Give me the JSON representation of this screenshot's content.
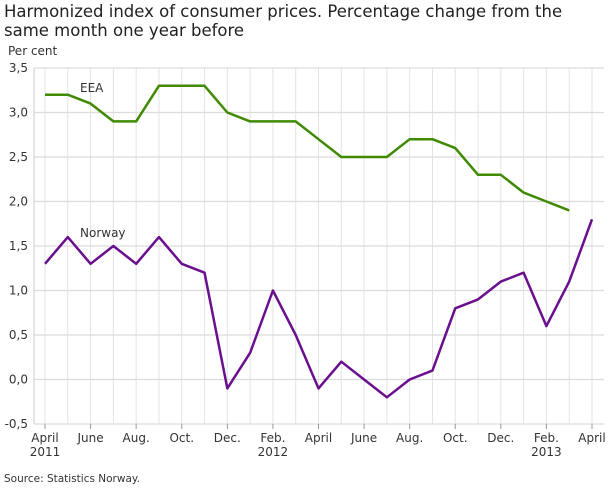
{
  "title": "Harmonized index of consumer prices. Percentage change from the same month one year before",
  "source": "Source: Statistics Norway.",
  "chart_data": {
    "type": "line",
    "title": "Harmonized index of consumer prices. Percentage change from the same month one year before",
    "ylabel": "Per cent",
    "xlabel": "",
    "ylim": [
      -0.5,
      3.5
    ],
    "yticks": [
      "-0,5",
      "0,0",
      "0,5",
      "1,0",
      "1,5",
      "2,0",
      "2,5",
      "3,0",
      "3,5"
    ],
    "x": [
      "2011-04",
      "2011-05",
      "2011-06",
      "2011-07",
      "2011-08",
      "2011-09",
      "2011-10",
      "2011-11",
      "2011-12",
      "2012-01",
      "2012-02",
      "2012-03",
      "2012-04",
      "2012-05",
      "2012-06",
      "2012-07",
      "2012-08",
      "2012-09",
      "2012-10",
      "2012-11",
      "2012-12",
      "2013-01",
      "2013-02",
      "2013-03",
      "2013-04"
    ],
    "xticks": [
      {
        "month": 0,
        "label": "April",
        "year": "2011"
      },
      {
        "month": 2,
        "label": "June",
        "year": ""
      },
      {
        "month": 4,
        "label": "Aug.",
        "year": ""
      },
      {
        "month": 6,
        "label": "Oct.",
        "year": ""
      },
      {
        "month": 8,
        "label": "Dec.",
        "year": ""
      },
      {
        "month": 10,
        "label": "Feb.",
        "year": "2012"
      },
      {
        "month": 12,
        "label": "April",
        "year": ""
      },
      {
        "month": 14,
        "label": "June",
        "year": ""
      },
      {
        "month": 16,
        "label": "Aug.",
        "year": ""
      },
      {
        "month": 18,
        "label": "Oct.",
        "year": ""
      },
      {
        "month": 20,
        "label": "Dec.",
        "year": ""
      },
      {
        "month": 22,
        "label": "Feb.",
        "year": "2013"
      },
      {
        "month": 24,
        "label": "April",
        "year": ""
      }
    ],
    "grid": true,
    "series": [
      {
        "name": "EEA",
        "color": "#3f8a00",
        "values": [
          3.2,
          3.2,
          3.1,
          2.9,
          2.9,
          3.3,
          3.3,
          3.3,
          3.0,
          2.9,
          2.9,
          2.9,
          2.7,
          2.5,
          2.5,
          2.5,
          2.7,
          2.7,
          2.6,
          2.3,
          2.3,
          2.1,
          2.0,
          1.9,
          null
        ]
      },
      {
        "name": "Norway",
        "color": "#6a0f8e",
        "values": [
          1.3,
          1.6,
          1.3,
          1.5,
          1.3,
          1.6,
          1.3,
          1.2,
          -0.1,
          0.3,
          1.0,
          0.5,
          -0.1,
          0.2,
          0.0,
          -0.2,
          0.0,
          0.1,
          0.8,
          0.9,
          1.1,
          1.2,
          0.6,
          1.1,
          1.8
        ]
      }
    ]
  }
}
